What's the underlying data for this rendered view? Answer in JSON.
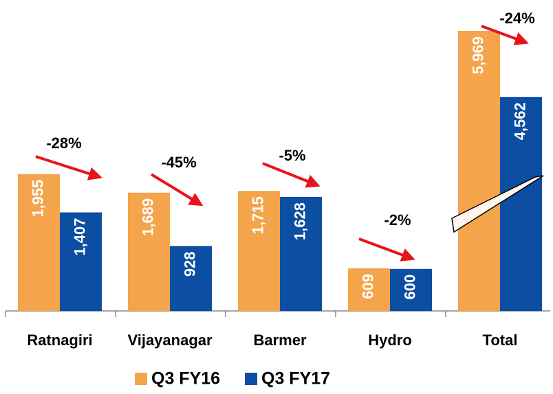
{
  "chart_data": {
    "type": "bar",
    "categories": [
      "Ratnagiri",
      "Vijayanagar",
      "Barmer",
      "Hydro",
      "Total"
    ],
    "series": [
      {
        "name": "Q3 FY16",
        "color": "#f4a44a",
        "values": [
          1955,
          1689,
          1715,
          609,
          5969
        ],
        "value_labels": [
          "1,955",
          "1,689",
          "1,715",
          "609",
          "5,969"
        ]
      },
      {
        "name": "Q3 FY17",
        "color": "#0b4ea2",
        "values": [
          1407,
          928,
          1628,
          600,
          4562
        ],
        "value_labels": [
          "1,407",
          "928",
          "1,628",
          "600",
          "4,562"
        ]
      }
    ],
    "annotations": [
      "-28%",
      "-45%",
      "-5%",
      "-2%",
      "-24%"
    ],
    "legend": "bottom"
  }
}
